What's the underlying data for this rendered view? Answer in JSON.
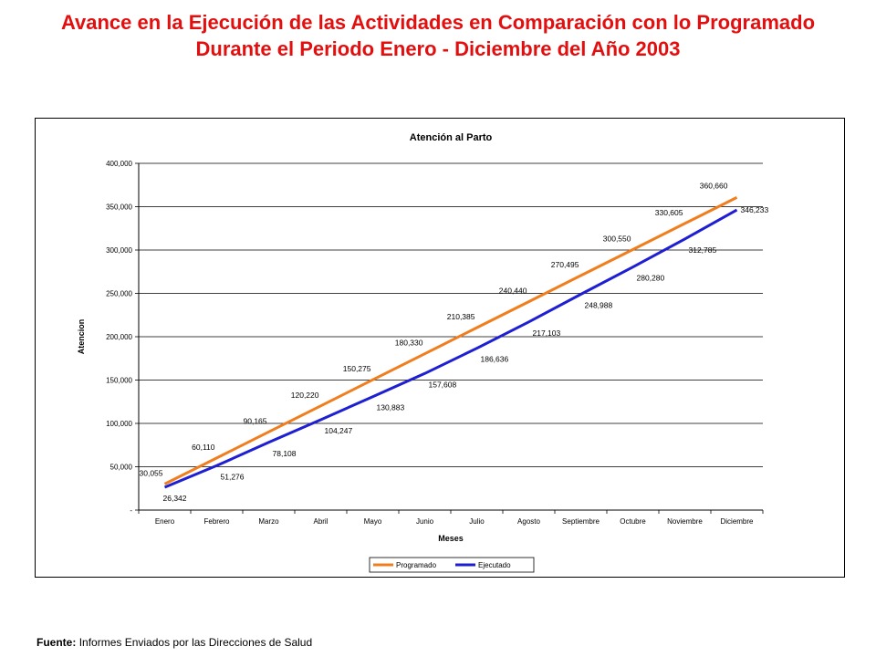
{
  "page": {
    "title": "Avance en la Ejecución de las Actividades en Comparación con lo Programado Durante el Periodo Enero - Diciembre del Año 2003",
    "source_label": "Fuente:",
    "source_text": "Informes Enviados por las Direcciones de Salud"
  },
  "chart_data": {
    "type": "line",
    "title": "Atención al Parto",
    "xlabel": "Meses",
    "ylabel": "Atencion",
    "categories": [
      "Enero",
      "Febrero",
      "Marzo",
      "Abril",
      "Mayo",
      "Junio",
      "Julio",
      "Agosto",
      "Septiembre",
      "Octubre",
      "Noviembre",
      "Diciembre"
    ],
    "ylim": [
      0,
      400000
    ],
    "yticks": [
      0,
      50000,
      100000,
      150000,
      200000,
      250000,
      300000,
      350000,
      400000
    ],
    "ytick_labels": [
      "-",
      "50,000",
      "100,000",
      "150,000",
      "200,000",
      "250,000",
      "300,000",
      "350,000",
      "400,000"
    ],
    "grid": true,
    "legend_position": "bottom",
    "series": [
      {
        "name": "Programado",
        "color": "#f07d1e",
        "values": [
          30055,
          60110,
          90165,
          120220,
          150275,
          180330,
          210385,
          240440,
          270495,
          300550,
          330605,
          360660
        ],
        "labels": [
          "30,055",
          "60,110",
          "90,165",
          "120,220",
          "150,275",
          "180,330",
          "210,385",
          "240,440",
          "270,495",
          "300,550",
          "330,605",
          "360,660"
        ]
      },
      {
        "name": "Ejecutado",
        "color": "#1e1ed2",
        "values": [
          26342,
          51276,
          78108,
          104247,
          130883,
          157608,
          186636,
          217103,
          248988,
          280280,
          312785,
          346233
        ],
        "labels": [
          "26,342",
          "51,276",
          "78,108",
          "104,247",
          "130,883",
          "157,608",
          "186,636",
          "217,103",
          "248,988",
          "280,280",
          "312,785",
          "346,233"
        ]
      }
    ]
  }
}
